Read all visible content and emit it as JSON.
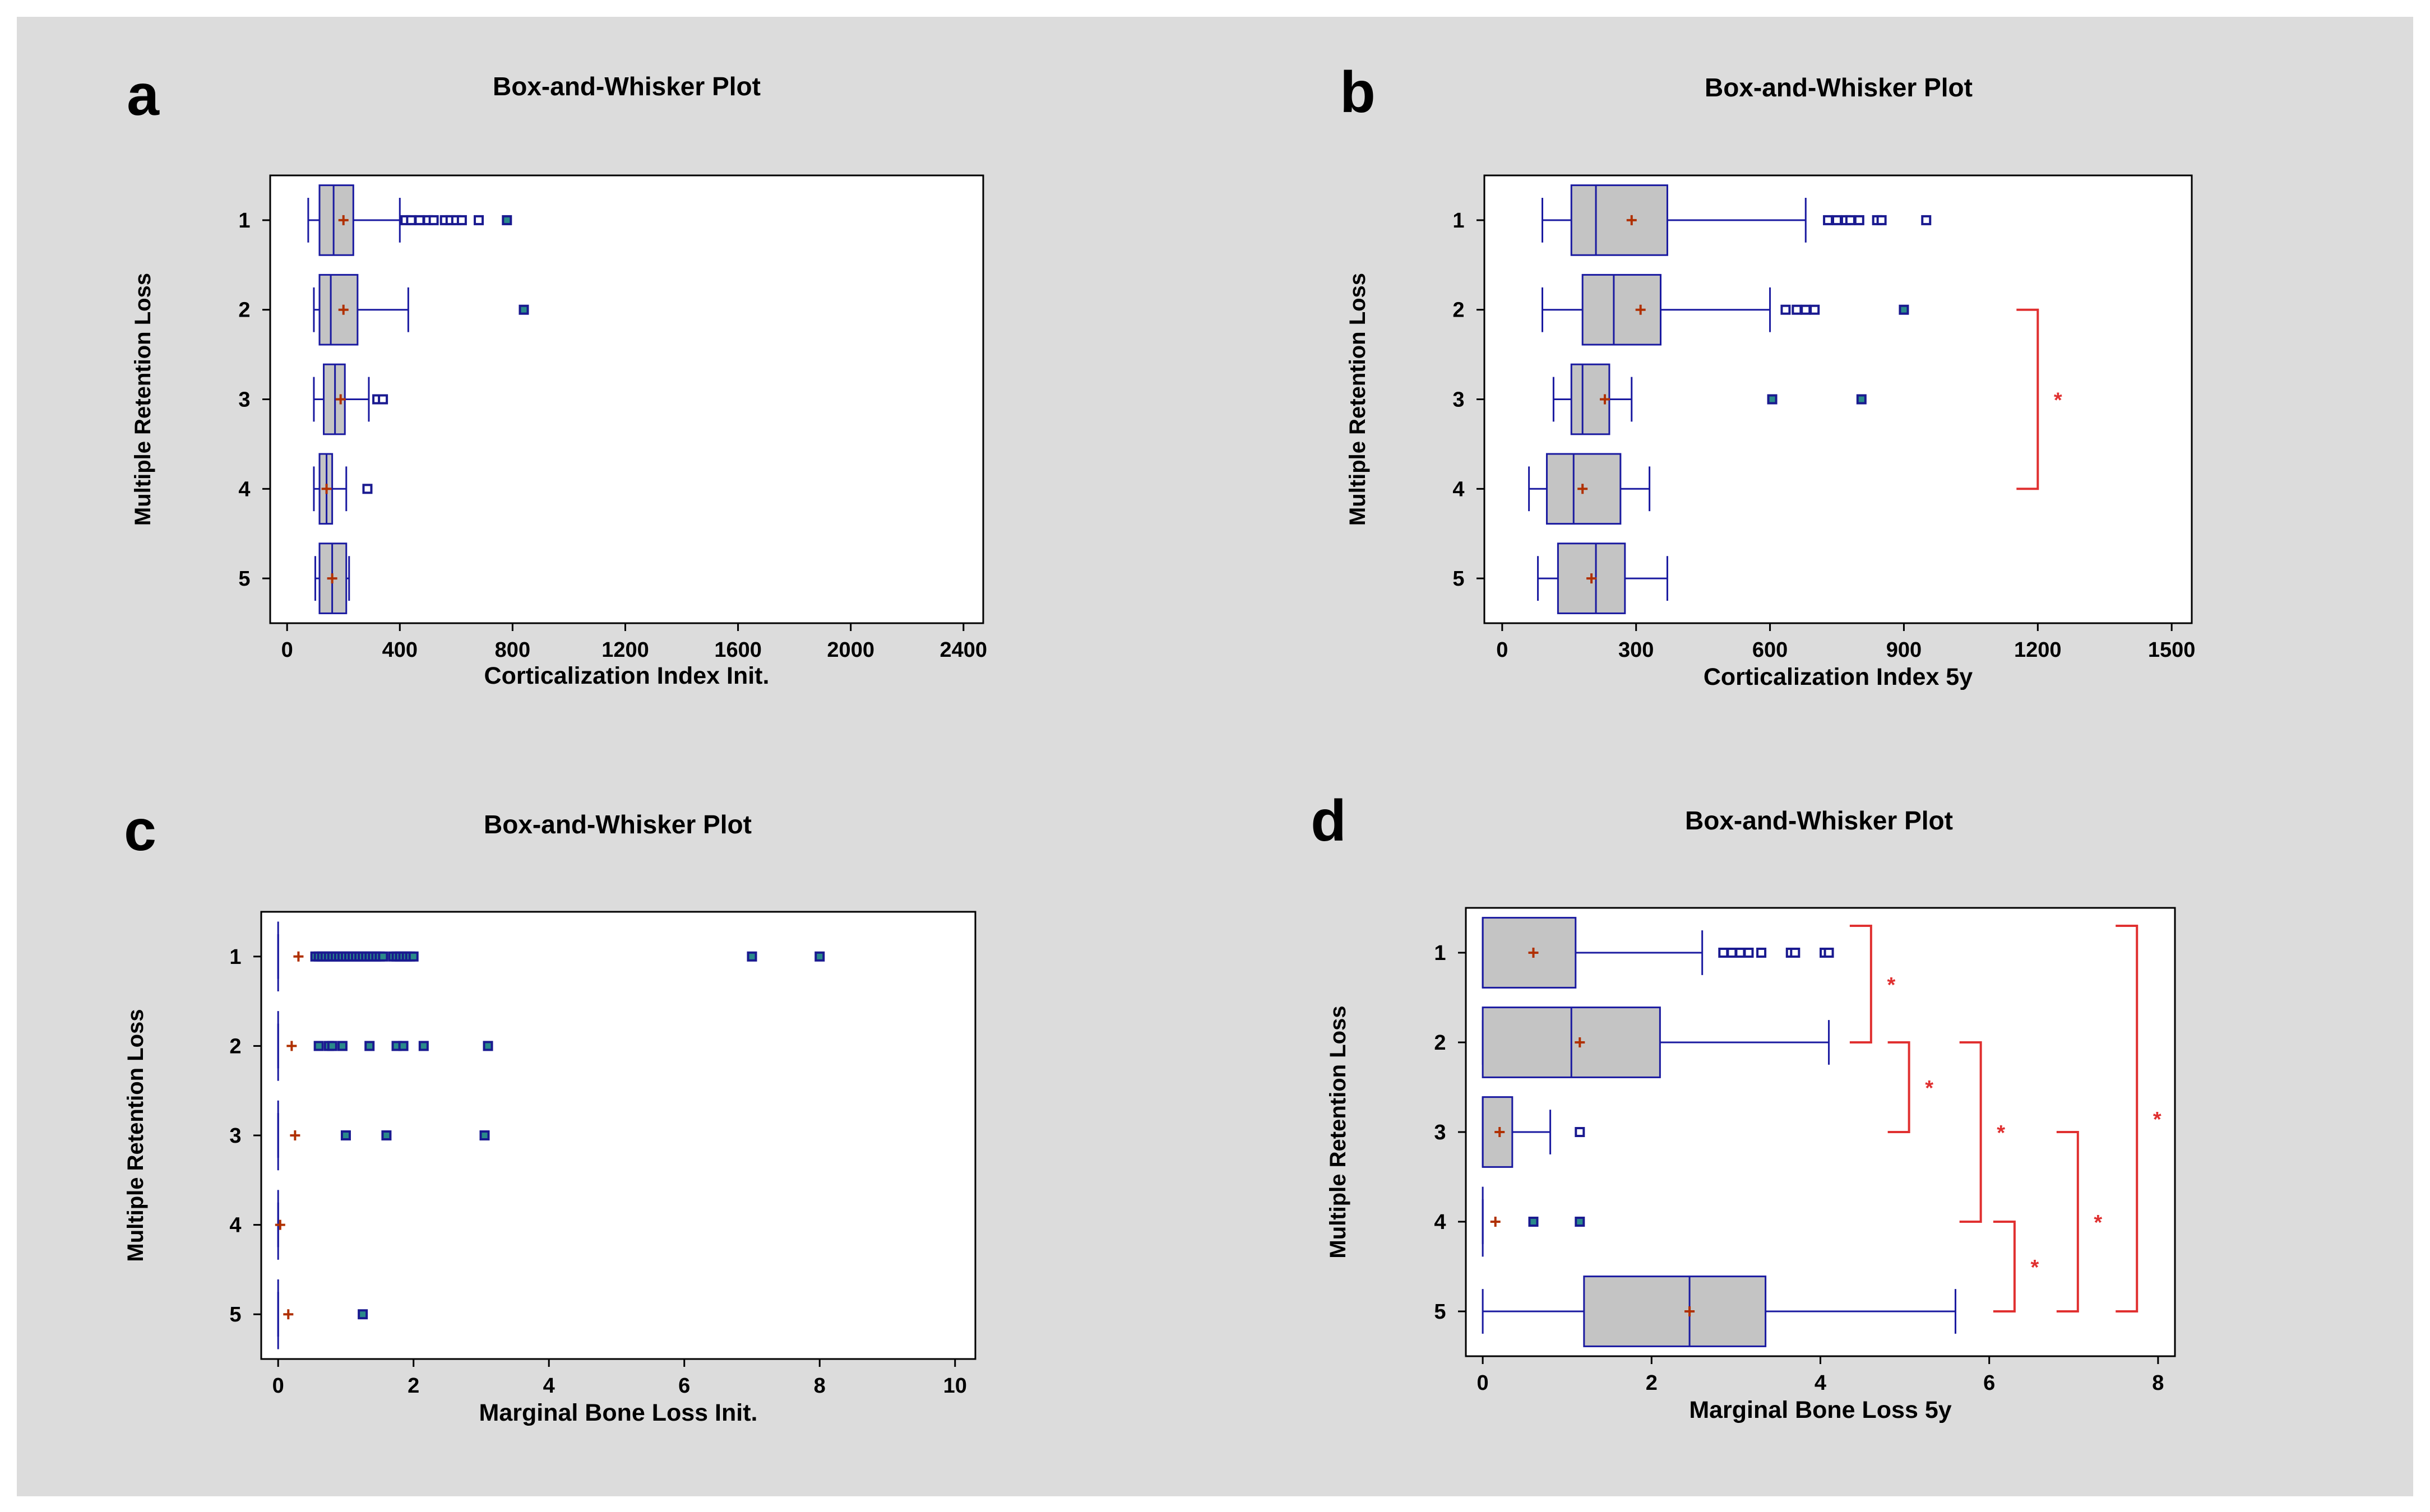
{
  "chart_data": [
    {
      "panel": "a",
      "type": "boxplot",
      "title": "Box-and-Whisker Plot",
      "xlabel": "Corticalization Index Init.",
      "ylabel": "Multiple Retention Loss",
      "xlim": [
        -60,
        2470
      ],
      "xticks": [
        0,
        400,
        800,
        1200,
        1600,
        2000,
        2400
      ],
      "categories": [
        "1",
        "2",
        "3",
        "4",
        "5"
      ],
      "series": [
        {
          "name": "1",
          "min": 75,
          "q1": 115,
          "median": 165,
          "q3": 235,
          "max": 400,
          "mean": 200,
          "outliers": [
            420,
            440,
            470,
            500,
            520,
            560,
            580,
            600,
            620,
            680
          ],
          "far_outliers": [
            780
          ]
        },
        {
          "name": "2",
          "min": 95,
          "q1": 115,
          "median": 155,
          "q3": 250,
          "max": 430,
          "mean": 200,
          "outliers": [],
          "far_outliers": [
            840
          ]
        },
        {
          "name": "3",
          "min": 95,
          "q1": 130,
          "median": 170,
          "q3": 205,
          "max": 290,
          "mean": 190,
          "outliers": [
            320,
            340
          ],
          "far_outliers": []
        },
        {
          "name": "4",
          "min": 95,
          "q1": 115,
          "median": 140,
          "q3": 160,
          "max": 210,
          "mean": 140,
          "outliers": [
            285
          ],
          "far_outliers": []
        },
        {
          "name": "5",
          "min": 100,
          "q1": 115,
          "median": 160,
          "q3": 210,
          "max": 220,
          "mean": 160,
          "outliers": [],
          "far_outliers": []
        }
      ],
      "significance": []
    },
    {
      "panel": "b",
      "type": "boxplot",
      "title": "Box-and-Whisker Plot",
      "xlabel": "Corticalization Index 5y",
      "ylabel": "Multiple Retention Loss",
      "xlim": [
        -40,
        1545
      ],
      "xticks": [
        0,
        300,
        600,
        900,
        1200,
        1500
      ],
      "categories": [
        "1",
        "2",
        "3",
        "4",
        "5"
      ],
      "series": [
        {
          "name": "1",
          "min": 90,
          "q1": 155,
          "median": 210,
          "q3": 370,
          "max": 680,
          "mean": 290,
          "outliers": [
            730,
            750,
            770,
            780,
            800,
            840,
            850,
            950
          ],
          "far_outliers": []
        },
        {
          "name": "2",
          "min": 90,
          "q1": 180,
          "median": 250,
          "q3": 355,
          "max": 600,
          "mean": 310,
          "outliers": [
            635,
            660,
            680,
            700
          ],
          "far_outliers": [
            900
          ]
        },
        {
          "name": "3",
          "min": 115,
          "q1": 155,
          "median": 180,
          "q3": 240,
          "max": 290,
          "mean": 230,
          "outliers": [],
          "far_outliers": [
            605,
            805
          ]
        },
        {
          "name": "4",
          "min": 60,
          "q1": 100,
          "median": 160,
          "q3": 265,
          "max": 330,
          "mean": 180,
          "outliers": [],
          "far_outliers": []
        },
        {
          "name": "5",
          "min": 80,
          "q1": 125,
          "median": 210,
          "q3": 275,
          "max": 370,
          "mean": 200,
          "outliers": [],
          "far_outliers": []
        }
      ],
      "significance": [
        {
          "from": "2",
          "to": "4",
          "x": 1200,
          "label": "*"
        }
      ]
    },
    {
      "panel": "c",
      "type": "boxplot",
      "title": "Box-and-Whisker Plot",
      "xlabel": "Marginal Bone Loss Init.",
      "ylabel": "Multiple Retention Loss",
      "xlim": [
        -0.25,
        10.3
      ],
      "xticks": [
        0,
        2,
        4,
        6,
        8,
        10
      ],
      "categories": [
        "1",
        "2",
        "3",
        "4",
        "5"
      ],
      "series": [
        {
          "name": "1",
          "min": 0,
          "q1": 0,
          "median": 0,
          "q3": 0,
          "max": 0,
          "mean": 0.3,
          "outliers": [],
          "far_outliers": [
            0.55,
            0.6,
            0.65,
            0.7,
            0.75,
            0.8,
            0.85,
            0.9,
            0.95,
            1.0,
            1.05,
            1.1,
            1.15,
            1.2,
            1.25,
            1.3,
            1.35,
            1.4,
            1.45,
            1.5,
            1.55,
            1.7,
            1.75,
            1.8,
            1.85,
            1.9,
            1.95,
            2.0,
            7.0,
            8.0
          ]
        },
        {
          "name": "2",
          "min": 0,
          "q1": 0,
          "median": 0,
          "q3": 0,
          "max": 0,
          "mean": 0.2,
          "outliers": [],
          "far_outliers": [
            0.6,
            0.75,
            0.8,
            0.95,
            1.35,
            1.75,
            1.85,
            2.15,
            3.1
          ]
        },
        {
          "name": "3",
          "min": 0,
          "q1": 0,
          "median": 0,
          "q3": 0,
          "max": 0,
          "mean": 0.25,
          "outliers": [],
          "far_outliers": [
            1.0,
            1.6,
            3.05
          ]
        },
        {
          "name": "4",
          "min": 0,
          "q1": 0,
          "median": 0,
          "q3": 0,
          "max": 0,
          "mean": 0.03,
          "outliers": [],
          "far_outliers": []
        },
        {
          "name": "5",
          "min": 0,
          "q1": 0,
          "median": 0,
          "q3": 0,
          "max": 0,
          "mean": 0.15,
          "outliers": [],
          "far_outliers": [
            1.25
          ]
        }
      ],
      "significance": []
    },
    {
      "panel": "d",
      "type": "boxplot",
      "title": "Box-and-Whisker Plot",
      "xlabel": "Marginal Bone Loss 5y",
      "ylabel": "Multiple Retention Loss",
      "xlim": [
        -0.2,
        8.2
      ],
      "xticks": [
        0,
        2,
        4,
        6,
        8
      ],
      "categories": [
        "1",
        "2",
        "3",
        "4",
        "5"
      ],
      "series": [
        {
          "name": "1",
          "min": 0,
          "q1": 0,
          "median": 0,
          "q3": 1.1,
          "max": 2.6,
          "mean": 0.6,
          "outliers": [
            2.85,
            2.95,
            3.05,
            3.15,
            3.3,
            3.65,
            3.7,
            4.05,
            4.1
          ],
          "far_outliers": []
        },
        {
          "name": "2",
          "min": 0,
          "q1": 0,
          "median": 1.05,
          "q3": 2.1,
          "max": 4.1,
          "mean": 1.15,
          "outliers": [],
          "far_outliers": []
        },
        {
          "name": "3",
          "min": 0,
          "q1": 0,
          "median": 0,
          "q3": 0.35,
          "max": 0.8,
          "mean": 0.2,
          "outliers": [
            1.15
          ],
          "far_outliers": []
        },
        {
          "name": "4",
          "min": 0,
          "q1": 0,
          "median": 0,
          "q3": 0,
          "max": 0,
          "mean": 0.15,
          "outliers": [],
          "far_outliers": [
            0.6,
            1.15
          ]
        },
        {
          "name": "5",
          "min": 0,
          "q1": 1.2,
          "median": 2.45,
          "q3": 3.35,
          "max": 5.6,
          "mean": 2.45,
          "outliers": [],
          "far_outliers": []
        }
      ],
      "significance": [
        {
          "from": "1",
          "to": "2",
          "x": 4.6,
          "label": "*"
        },
        {
          "from": "2",
          "to": "3",
          "x": 5.05,
          "label": "*"
        },
        {
          "from": "2",
          "to": "4",
          "x": 5.9,
          "label": "*"
        },
        {
          "from": "4",
          "to": "5",
          "x": 6.3,
          "label": "*"
        },
        {
          "from": "3",
          "to": "5",
          "x": 7.05,
          "label": "*"
        },
        {
          "from": "1",
          "to": "5",
          "x": 7.75,
          "label": "*"
        }
      ]
    }
  ]
}
